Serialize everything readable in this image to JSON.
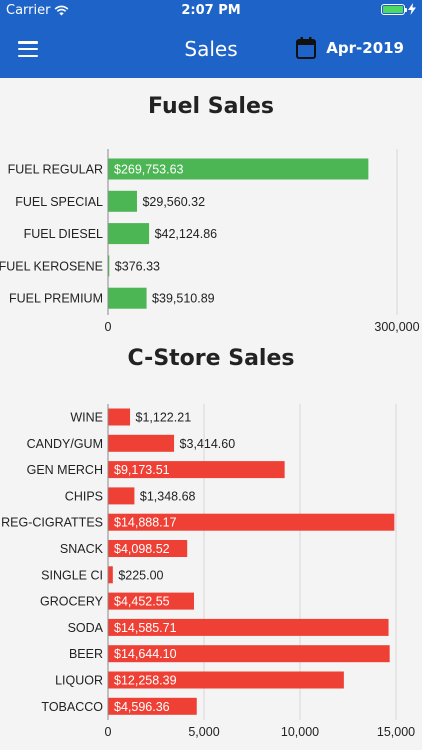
{
  "status_bar": {
    "carrier": "Carrier",
    "time": "2:07 PM"
  },
  "header": {
    "title": "Sales",
    "date": "Apr-2019",
    "menu_icon": "hamburger-menu-icon",
    "calendar_icon": "calendar-icon"
  },
  "colors": {
    "header_bg": "#1e64c8",
    "fuel_bar": "#4cb554",
    "cstore_bar": "#ee4035"
  },
  "fuel_section": {
    "title": "Fuel Sales"
  },
  "cstore_section": {
    "title": "C-Store Sales"
  },
  "chart_data": [
    {
      "type": "bar",
      "orientation": "horizontal",
      "title": "Fuel Sales",
      "categories": [
        "FUEL REGULAR",
        "FUEL SPECIAL",
        "FUEL DIESEL",
        "FUEL KEROSENE",
        "FUEL PREMIUM"
      ],
      "values": [
        269753.63,
        29560.32,
        42124.86,
        376.33,
        39510.89
      ],
      "labels": [
        "$269,753.63",
        "$29,560.32",
        "$42,124.86",
        "$376.33",
        "$39,510.89"
      ],
      "xlim": [
        0,
        300000
      ],
      "ticks": [
        0,
        300000
      ],
      "tick_labels": [
        "0",
        "300,000"
      ],
      "color": "#4cb554",
      "grid": true
    },
    {
      "type": "bar",
      "orientation": "horizontal",
      "title": "C-Store Sales",
      "categories": [
        "WINE",
        "CANDY/GUM",
        "GEN MERCH",
        "CHIPS",
        "REG-CIGRATTES",
        "SNACK",
        "SINGLE CI",
        "GROCERY",
        "SODA",
        "BEER",
        "LIQUOR",
        "TOBACCO"
      ],
      "values": [
        1122.21,
        3414.6,
        9173.51,
        1348.68,
        14888.17,
        4098.52,
        225.0,
        4452.55,
        14585.71,
        14644.1,
        12258.39,
        4596.36
      ],
      "labels": [
        "$1,122.21",
        "$3,414.60",
        "$9,173.51",
        "$1,348.68",
        "$14,888.17",
        "$4,098.52",
        "$225.00",
        "$4,452.55",
        "$14,585.71",
        "$14,644.10",
        "$12,258.39",
        "$4,596.36"
      ],
      "xlim": [
        0,
        15000
      ],
      "ticks": [
        0,
        5000,
        10000,
        15000
      ],
      "tick_labels": [
        "0",
        "5,000",
        "10,000",
        "15,000"
      ],
      "color": "#ee4035",
      "grid": true
    }
  ]
}
